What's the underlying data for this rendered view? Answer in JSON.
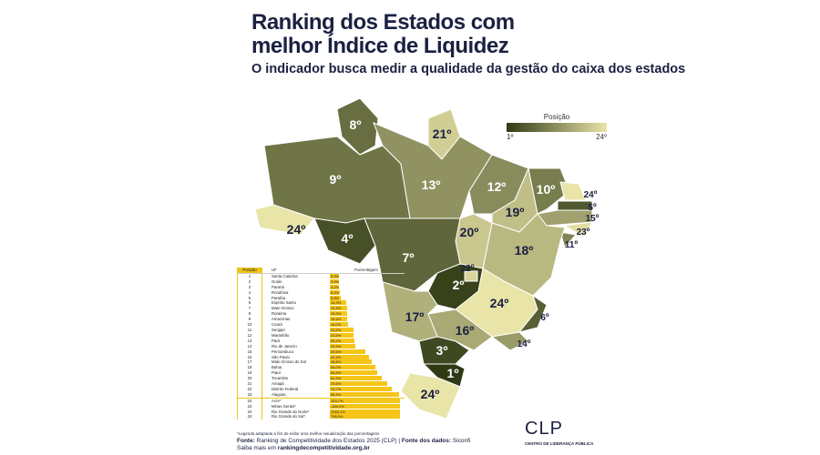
{
  "title_line1": "Ranking dos Estados com",
  "title_line2": "melhor Índice de Liquidez",
  "subtitle": "O indicador busca medir a qualidade da gestão do caixa dos estados",
  "legend": {
    "title": "Posição",
    "min": "1º",
    "max": "24º",
    "colors": [
      "#2f3a14",
      "#e9e4a8"
    ]
  },
  "chart_data": {
    "type": "table",
    "title": "Ranking dos Estados com melhor Índice de Liquidez",
    "map_ranks": {
      "RR": "8º",
      "AP": "21º",
      "AM": "9º",
      "PA": "13º",
      "MA": "12º",
      "CE": "10º",
      "RN": "24º",
      "PB": "5º",
      "PE": "15º",
      "AL": "23º",
      "SE": "11º",
      "PI": "19º",
      "AC": "24º",
      "RO": "4º",
      "MT": "7º",
      "TO": "20º",
      "BA": "18º",
      "DF": "22º",
      "GO": "2º",
      "MG": "24º",
      "ES": "6º",
      "RJ": "14º",
      "SP": "16º",
      "MS": "17º",
      "PR": "3º",
      "SC": "1º",
      "RS": "24º"
    },
    "columns": [
      "Posição",
      "UF",
      "Porcentagem"
    ],
    "rows": [
      [
        "1",
        "Santa Catarina",
        "3,3%",
        3.3
      ],
      [
        "2",
        "Goiás",
        "3,9%",
        3.9
      ],
      [
        "3",
        "Paraná",
        "4,1%",
        4.1
      ],
      [
        "4",
        "Rondônia",
        "5,4%",
        5.4
      ],
      [
        "5",
        "Paraíba",
        "5,8%",
        5.8
      ],
      [
        "6",
        "Espírito Santo",
        "14,3%",
        14.3
      ],
      [
        "7",
        "Mato Grosso",
        "14,9%",
        14.9
      ],
      [
        "8",
        "Roraima",
        "15,3%",
        15.3
      ],
      [
        "9",
        "Amazonas",
        "15,4%",
        15.4
      ],
      [
        "10",
        "Ceará",
        "16,0%",
        16.0
      ],
      [
        "11",
        "Sergipe",
        "23,2%",
        23.2
      ],
      [
        "12",
        "Maranhão",
        "23,5%",
        23.5
      ],
      [
        "13",
        "Pará",
        "25,2%",
        25.2
      ],
      [
        "14",
        "Rio de Janeiro",
        "25,9%",
        25.9
      ],
      [
        "15",
        "Pernambuco",
        "39,6%",
        39.6
      ],
      [
        "16",
        "São Paulo",
        "44,9%",
        44.9
      ],
      [
        "17",
        "Mato Grosso do Sul",
        "48,8%",
        48.8
      ],
      [
        "18",
        "Bahia",
        "54,0%",
        54.0
      ],
      [
        "19",
        "Piauí",
        "56,8%",
        56.8
      ],
      [
        "20",
        "Tocantins",
        "61,9%",
        61.9
      ],
      [
        "21",
        "Amapá",
        "70,6%",
        70.6
      ],
      [
        "22",
        "Distrito Federal",
        "75,7%",
        75.7
      ],
      [
        "23",
        "Alagoas",
        "86,3%",
        86.3
      ],
      [
        "24",
        "Acre*",
        "153,7%",
        153.7
      ],
      [
        "24",
        "Minas Gerais*",
        "-480,0%",
        -480.0
      ],
      [
        "24",
        "Rio Grande do Norte*",
        "1063,1%",
        1063.1
      ],
      [
        "24",
        "Rio Grande do Sul*",
        "708,0%",
        708.0
      ]
    ]
  },
  "footer": {
    "note": "*Legenda adaptada a fim de exibir uma melhor visualização das porcentagens",
    "source_label": "Fonte:",
    "source": " Ranking de Competitividade dos Estados 2025 (CLP) | ",
    "data_label": "Fonte dos dados:",
    "data_source": " Siconfi",
    "more": "Saiba mais em ",
    "link": "rankingdecompetitividade.org.br"
  },
  "logo": {
    "text": "CLP",
    "sub": "CENTRO DE LIDERANÇA PÚBLICA"
  }
}
